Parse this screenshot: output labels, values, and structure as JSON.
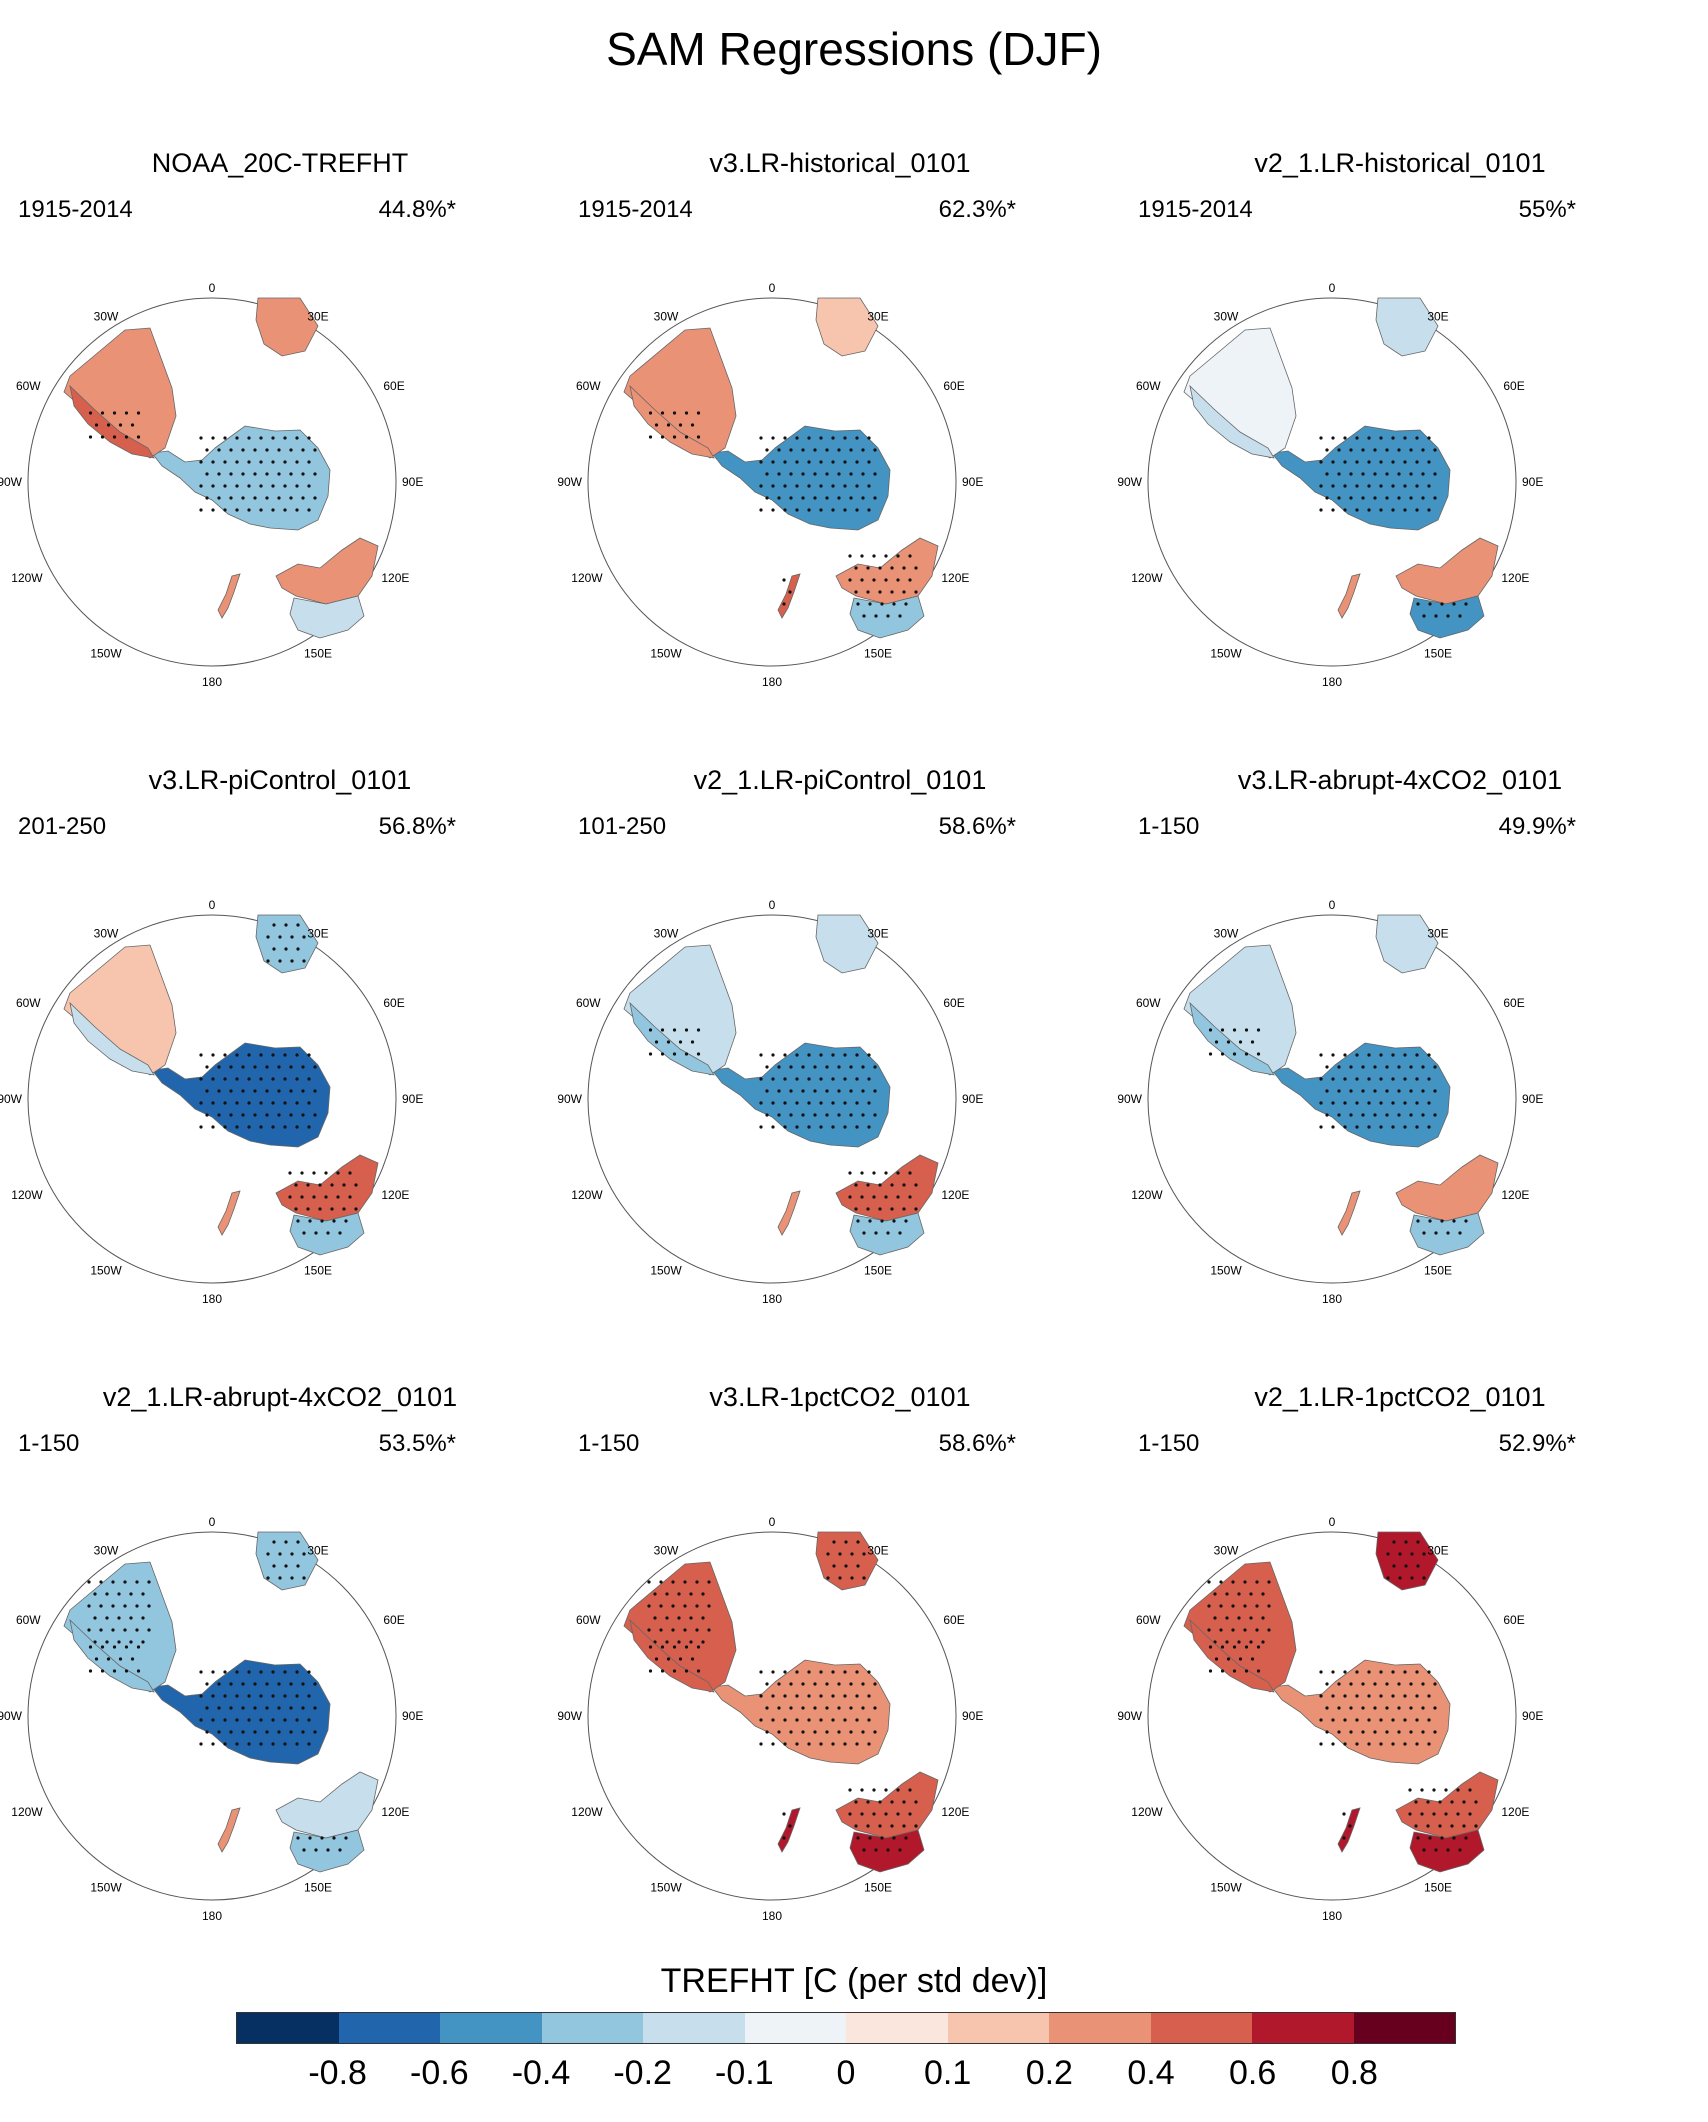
{
  "title": "SAM Regressions (DJF)",
  "chart_data": {
    "type": "heatmap",
    "projection": "south-polar-stereographic",
    "longitude_labels": [
      "0",
      "30E",
      "60E",
      "90E",
      "120E",
      "150E",
      "180",
      "150W",
      "120W",
      "90W",
      "60W",
      "30W"
    ],
    "panels": [
      {
        "title": "NOAA_20C-TREFHT",
        "period": "1915-2014",
        "variance_explained": "44.8%*",
        "fields": {
          "antarctica": -0.3,
          "south_america": 0.2,
          "patagonia": 0.4,
          "southern_africa": 0.2,
          "australia_north": 0.2,
          "australia_south": -0.2,
          "new_zealand": 0.2
        }
      },
      {
        "title": "v3.LR-historical_0101",
        "period": "1915-2014",
        "variance_explained": "62.3%*",
        "fields": {
          "antarctica": -0.5,
          "south_america": 0.2,
          "patagonia": 0.3,
          "southern_africa": 0.1,
          "australia_north": 0.3,
          "australia_south": -0.3,
          "new_zealand": 0.4
        }
      },
      {
        "title": "v2_1.LR-historical_0101",
        "period": "1915-2014",
        "variance_explained": "55%*",
        "fields": {
          "antarctica": -0.6,
          "south_america": -0.1,
          "patagonia": -0.2,
          "southern_africa": -0.2,
          "australia_north": 0.2,
          "australia_south": -0.5,
          "new_zealand": 0.2
        }
      },
      {
        "title": "v3.LR-piControl_0101",
        "period": "201-250",
        "variance_explained": "56.8%*",
        "fields": {
          "antarctica": -0.7,
          "south_america": 0.1,
          "patagonia": -0.2,
          "southern_africa": -0.3,
          "australia_north": 0.4,
          "australia_south": -0.4,
          "new_zealand": 0.2
        }
      },
      {
        "title": "v2_1.LR-piControl_0101",
        "period": "101-250",
        "variance_explained": "58.6%*",
        "fields": {
          "antarctica": -0.6,
          "south_america": -0.2,
          "patagonia": -0.3,
          "southern_africa": -0.2,
          "australia_north": 0.4,
          "australia_south": -0.4,
          "new_zealand": 0.2
        }
      },
      {
        "title": "v3.LR-abrupt-4xCO2_0101",
        "period": "1-150",
        "variance_explained": "49.9%*",
        "fields": {
          "antarctica": -0.6,
          "south_america": -0.2,
          "patagonia": -0.3,
          "southern_africa": -0.2,
          "australia_north": 0.2,
          "australia_south": -0.4,
          "new_zealand": 0.2
        }
      },
      {
        "title": "v2_1.LR-abrupt-4xCO2_0101",
        "period": "1-150",
        "variance_explained": "53.5%*",
        "fields": {
          "antarctica": -0.7,
          "south_america": -0.3,
          "patagonia": -0.4,
          "southern_africa": -0.3,
          "australia_north": -0.2,
          "australia_south": -0.4,
          "new_zealand": 0.2
        }
      },
      {
        "title": "v3.LR-1pctCO2_0101",
        "period": "1-150",
        "variance_explained": "58.6%*",
        "fields": {
          "antarctica": 0.3,
          "south_america": 0.4,
          "patagonia": 0.5,
          "southern_africa": 0.5,
          "australia_north": 0.5,
          "australia_south": 0.6,
          "new_zealand": 0.6
        }
      },
      {
        "title": "v2_1.LR-1pctCO2_0101",
        "period": "1-150",
        "variance_explained": "52.9%*",
        "fields": {
          "antarctica": 0.3,
          "south_america": 0.4,
          "patagonia": 0.5,
          "southern_africa": 0.7,
          "australia_north": 0.5,
          "australia_south": 0.6,
          "new_zealand": 0.6
        }
      }
    ],
    "colorbar": {
      "label": "TREFHT [C (per std dev)]",
      "levels": [
        -1,
        -0.8,
        -0.6,
        -0.4,
        -0.2,
        -0.1,
        0,
        0.1,
        0.2,
        0.4,
        0.6,
        0.8,
        1
      ],
      "tick_labels": [
        "-0.8",
        "-0.6",
        "-0.4",
        "-0.2",
        "-0.1",
        "0",
        "0.1",
        "0.2",
        "0.4",
        "0.6",
        "0.8"
      ],
      "colors": [
        "#053061",
        "#2166ac",
        "#4393c3",
        "#92c5de",
        "#c7dfed",
        "#eef3f8",
        "#fbe6dd",
        "#f7c4ad",
        "#ea9276",
        "#d6604d",
        "#b2182b",
        "#67001f"
      ]
    }
  }
}
